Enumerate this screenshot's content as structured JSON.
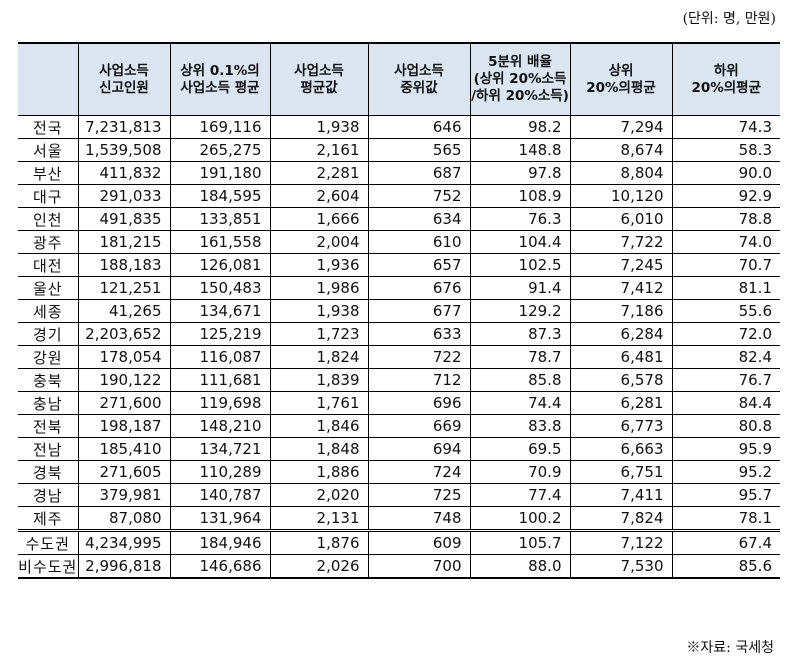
{
  "unit_note": "(단위: 명, 만원)",
  "source_note": "※자료: 국세청",
  "table": {
    "headers": [
      "",
      [
        "사업소득",
        "신고인원"
      ],
      [
        "상위 0.1%의",
        "사업소득 평균"
      ],
      [
        "사업소득",
        "평균값"
      ],
      [
        "사업소득",
        "중위값"
      ],
      [
        "5분위 배율",
        "(상위 20%소득",
        "/하위 20%소득)"
      ],
      [
        "상위",
        "20%의평균"
      ],
      [
        "하위",
        "20%의평균"
      ]
    ],
    "rows": [
      [
        "전국",
        "7,231,813",
        "169,116",
        "1,938",
        "646",
        "98.2",
        "7,294",
        "74.3"
      ],
      [
        "서울",
        "1,539,508",
        "265,275",
        "2,161",
        "565",
        "148.8",
        "8,674",
        "58.3"
      ],
      [
        "부산",
        "411,832",
        "191,180",
        "2,281",
        "687",
        "97.8",
        "8,804",
        "90.0"
      ],
      [
        "대구",
        "291,033",
        "184,595",
        "2,604",
        "752",
        "108.9",
        "10,120",
        "92.9"
      ],
      [
        "인천",
        "491,835",
        "133,851",
        "1,666",
        "634",
        "76.3",
        "6,010",
        "78.8"
      ],
      [
        "광주",
        "181,215",
        "161,558",
        "2,004",
        "610",
        "104.4",
        "7,722",
        "74.0"
      ],
      [
        "대전",
        "188,183",
        "126,081",
        "1,936",
        "657",
        "102.5",
        "7,245",
        "70.7"
      ],
      [
        "울산",
        "121,251",
        "150,483",
        "1,986",
        "676",
        "91.4",
        "7,412",
        "81.1"
      ],
      [
        "세종",
        "41,265",
        "134,671",
        "1,938",
        "677",
        "129.2",
        "7,186",
        "55.6"
      ],
      [
        "경기",
        "2,203,652",
        "125,219",
        "1,723",
        "633",
        "87.3",
        "6,284",
        "72.0"
      ],
      [
        "강원",
        "178,054",
        "116,087",
        "1,824",
        "722",
        "78.7",
        "6,481",
        "82.4"
      ],
      [
        "충북",
        "190,122",
        "111,681",
        "1,839",
        "712",
        "85.8",
        "6,578",
        "76.7"
      ],
      [
        "충남",
        "271,600",
        "119,698",
        "1,761",
        "696",
        "74.4",
        "6,281",
        "84.4"
      ],
      [
        "전북",
        "198,187",
        "148,210",
        "1,846",
        "669",
        "83.8",
        "6,773",
        "80.8"
      ],
      [
        "전남",
        "185,410",
        "134,721",
        "1,848",
        "694",
        "69.5",
        "6,663",
        "95.9"
      ],
      [
        "경북",
        "271,605",
        "110,289",
        "1,886",
        "724",
        "70.9",
        "6,751",
        "95.2"
      ],
      [
        "경남",
        "379,981",
        "140,787",
        "2,020",
        "725",
        "77.4",
        "7,411",
        "95.7"
      ],
      [
        "제주",
        "87,080",
        "131,964",
        "2,131",
        "748",
        "100.2",
        "7,824",
        "78.1"
      ],
      [
        "수도권",
        "4,234,995",
        "184,946",
        "1,876",
        "609",
        "105.7",
        "7,122",
        "67.4"
      ],
      [
        "비수도권",
        "2,996,818",
        "146,686",
        "2,026",
        "700",
        "88.0",
        "7,530",
        "85.6"
      ]
    ]
  }
}
